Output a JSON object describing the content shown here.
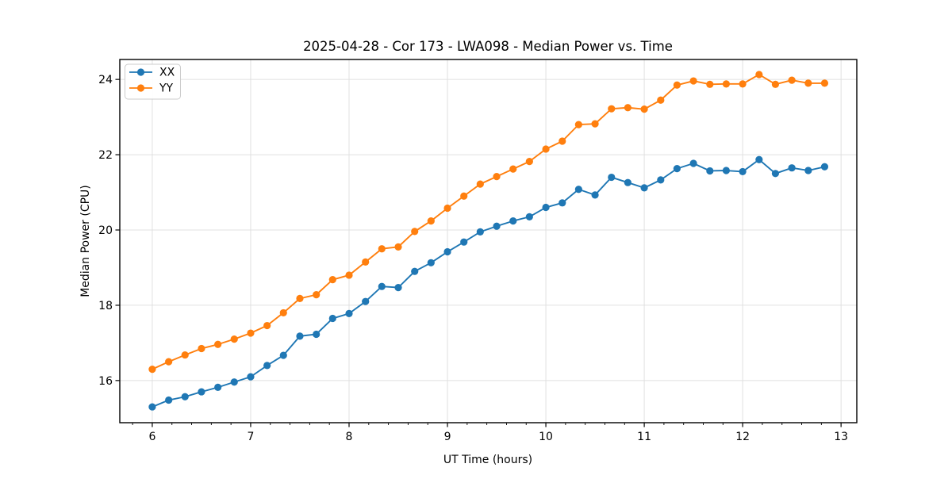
{
  "chart_data": {
    "type": "line",
    "title": "2025-04-28 - Cor 173 - LWA098 - Median Power vs. Time",
    "xlabel": "UT Time (hours)",
    "ylabel": "Median Power (CPU)",
    "x": [
      6.0,
      6.167,
      6.333,
      6.5,
      6.667,
      6.833,
      7.0,
      7.167,
      7.333,
      7.5,
      7.667,
      7.833,
      8.0,
      8.167,
      8.333,
      8.5,
      8.667,
      8.833,
      9.0,
      9.167,
      9.333,
      9.5,
      9.667,
      9.833,
      10.0,
      10.167,
      10.333,
      10.5,
      10.667,
      10.833,
      11.0,
      11.167,
      11.333,
      11.5,
      11.667,
      11.833,
      12.0,
      12.167,
      12.333,
      12.5,
      12.667,
      12.833
    ],
    "series": [
      {
        "name": "XX",
        "color": "#1f77b4",
        "values": [
          15.3,
          15.48,
          15.57,
          15.7,
          15.82,
          15.96,
          16.1,
          16.4,
          16.67,
          17.18,
          17.23,
          17.65,
          17.78,
          18.1,
          18.5,
          18.47,
          18.9,
          19.13,
          19.42,
          19.68,
          19.95,
          20.1,
          20.24,
          20.35,
          20.6,
          20.72,
          21.08,
          20.93,
          21.4,
          21.26,
          21.12,
          21.33,
          21.63,
          21.77,
          21.57,
          21.58,
          21.55,
          21.87,
          21.5,
          21.65,
          21.58,
          21.68
        ]
      },
      {
        "name": "YY",
        "color": "#ff7f0e",
        "values": [
          16.3,
          16.5,
          16.68,
          16.85,
          16.96,
          17.1,
          17.26,
          17.46,
          17.8,
          18.18,
          18.28,
          18.68,
          18.8,
          19.15,
          19.5,
          19.55,
          19.96,
          20.24,
          20.58,
          20.9,
          21.22,
          21.42,
          21.62,
          21.82,
          22.15,
          22.36,
          22.8,
          22.82,
          23.22,
          23.25,
          23.21,
          23.45,
          23.85,
          23.96,
          23.87,
          23.88,
          23.88,
          24.13,
          23.87,
          23.98,
          23.9,
          23.9
        ]
      }
    ],
    "xlim": [
      5.67,
      13.16
    ],
    "ylim": [
      14.88,
      24.53
    ],
    "xticks": [
      6,
      7,
      8,
      9,
      10,
      11,
      12,
      13
    ],
    "yticks": [
      16,
      18,
      20,
      22,
      24
    ],
    "x_minor_tick_step": 0.2,
    "grid": true,
    "marker": "circle",
    "legend": {
      "position": "upper left",
      "entries": [
        "XX",
        "YY"
      ]
    },
    "colors": {
      "background": "#ffffff",
      "grid": "#e0e0e0",
      "spine": "#000000",
      "text": "#000000"
    }
  }
}
